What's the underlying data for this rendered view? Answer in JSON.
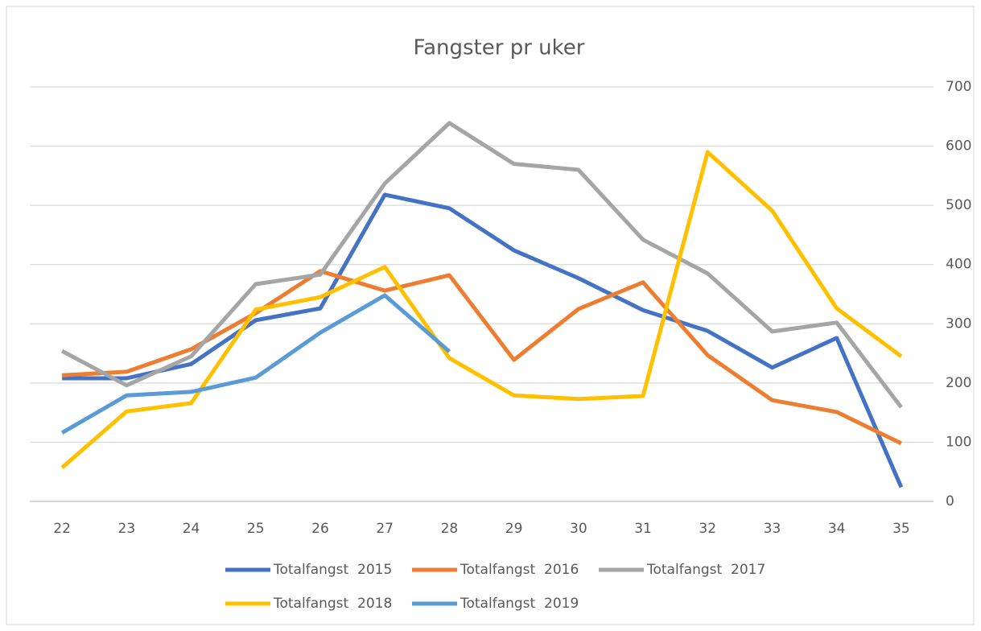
{
  "chart_data": {
    "type": "line",
    "title": "Fangster pr uker",
    "categories": [
      "22",
      "23",
      "24",
      "25",
      "26",
      "27",
      "28",
      "29",
      "30",
      "31",
      "32",
      "33",
      "34",
      "35"
    ],
    "series": [
      {
        "name": "Totalfangst  2015",
        "color": "#4472c4",
        "values": [
          208,
          208,
          232,
          306,
          326,
          518,
          495,
          424,
          377,
          323,
          288,
          226,
          276,
          24
        ]
      },
      {
        "name": "Totalfangst  2016",
        "color": "#ed7d31",
        "values": [
          213,
          219,
          257,
          318,
          389,
          356,
          382,
          239,
          325,
          370,
          247,
          171,
          151,
          98
        ]
      },
      {
        "name": "Totalfangst  2017",
        "color": "#a5a5a5",
        "values": [
          254,
          196,
          245,
          367,
          383,
          537,
          639,
          570,
          560,
          442,
          385,
          287,
          302,
          159
        ]
      },
      {
        "name": "Totalfangst  2018",
        "color": "#ffc000",
        "values": [
          57,
          152,
          166,
          324,
          345,
          396,
          242,
          179,
          173,
          178,
          590,
          491,
          326,
          245
        ]
      },
      {
        "name": "Totalfangst  2019",
        "color": "#5b9bd5",
        "values": [
          116,
          179,
          185,
          209,
          285,
          348,
          253,
          null,
          null,
          null,
          null,
          null,
          null,
          null
        ]
      }
    ],
    "ylim": [
      0,
      700
    ],
    "yticks": [
      0,
      100,
      200,
      300,
      400,
      500,
      600,
      700
    ],
    "grid": true,
    "y_axis_side": "right",
    "legend": "bottom"
  }
}
